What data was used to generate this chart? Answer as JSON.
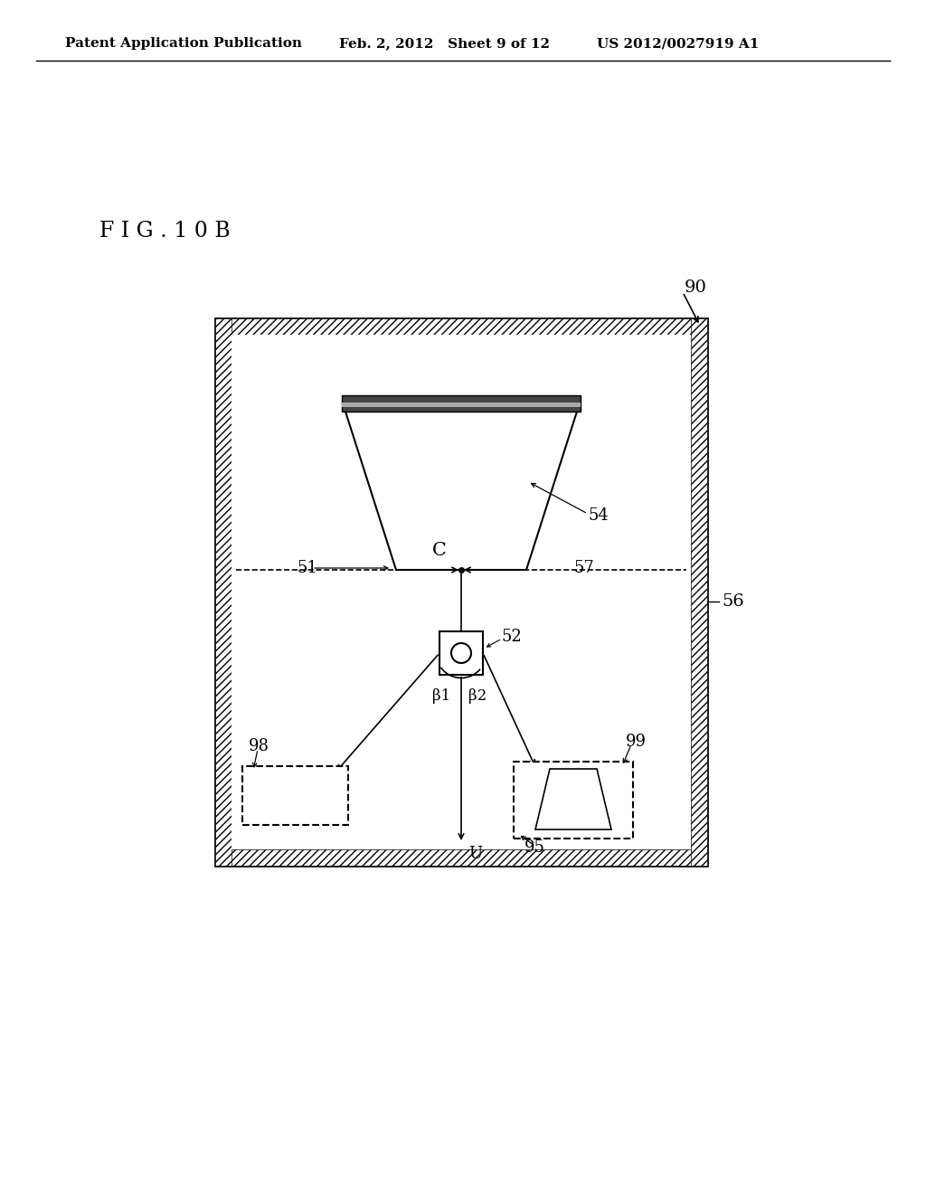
{
  "bg_color": "#ffffff",
  "line_color": "#000000",
  "header_left": "Patent Application Publication",
  "header_mid": "Feb. 2, 2012   Sheet 9 of 12",
  "header_right": "US 2012/0027919 A1",
  "fig_label": "F I G . 1 0 B",
  "label_90": "90",
  "label_56": "56",
  "label_54": "54",
  "label_51": "51",
  "label_57": "57",
  "label_52": "52",
  "label_C": "C",
  "label_U": "U",
  "label_beta1": "β1",
  "label_beta2": "β2",
  "label_95": "95",
  "label_98": "98",
  "label_99": "99"
}
